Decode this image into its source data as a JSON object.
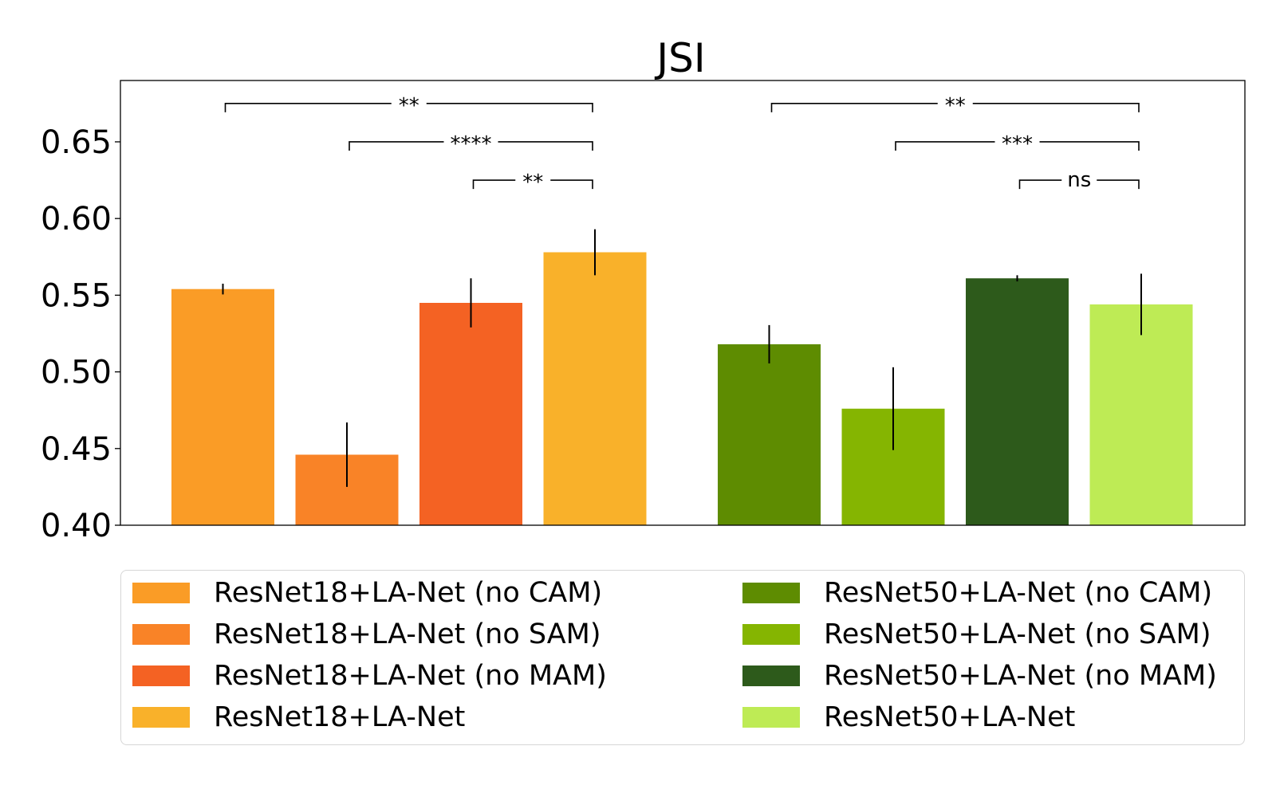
{
  "chart_data": {
    "type": "bar",
    "title": "JSI",
    "ylim": [
      0.4,
      0.69
    ],
    "yticks": [
      "0.40",
      "0.45",
      "0.50",
      "0.55",
      "0.60",
      "0.65"
    ],
    "grid": false,
    "legend_position": "bottom",
    "series": [
      {
        "name": "ResNet18+LA-Net (no CAM)",
        "value": 0.554,
        "error": 0.0035,
        "color": "#FA9C26",
        "group": 1
      },
      {
        "name": "ResNet18+LA-Net (no SAM)",
        "value": 0.446,
        "error": 0.021,
        "color": "#F98327",
        "group": 1
      },
      {
        "name": "ResNet18+LA-Net (no MAM)",
        "value": 0.545,
        "error": 0.016,
        "color": "#F46223",
        "group": 1
      },
      {
        "name": "ResNet18+LA-Net",
        "value": 0.578,
        "error": 0.015,
        "color": "#F9B12A",
        "group": 1
      },
      {
        "name": "ResNet50+LA-Net (no CAM)",
        "value": 0.518,
        "error": 0.0125,
        "color": "#5E8C01",
        "group": 2
      },
      {
        "name": "ResNet50+LA-Net (no SAM)",
        "value": 0.476,
        "error": 0.027,
        "color": "#85B501",
        "group": 2
      },
      {
        "name": "ResNet50+LA-Net (no MAM)",
        "value": 0.561,
        "error": 0.002,
        "color": "#2D5A1B",
        "group": 2
      },
      {
        "name": "ResNet50+LA-Net",
        "value": 0.544,
        "error": 0.02,
        "color": "#BEEB55",
        "group": 2
      }
    ],
    "significance": [
      {
        "from": 0,
        "to": 3,
        "label": "**",
        "level": 0.675
      },
      {
        "from": 1,
        "to": 3,
        "label": "****",
        "level": 0.65
      },
      {
        "from": 2,
        "to": 3,
        "label": "**",
        "level": 0.625
      },
      {
        "from": 4,
        "to": 7,
        "label": "**",
        "level": 0.675
      },
      {
        "from": 5,
        "to": 7,
        "label": "***",
        "level": 0.65
      },
      {
        "from": 6,
        "to": 7,
        "label": "ns",
        "level": 0.625
      }
    ]
  }
}
